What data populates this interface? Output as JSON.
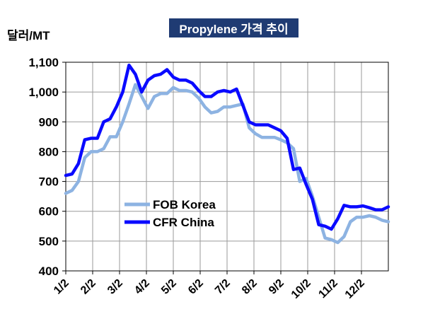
{
  "chart_data": {
    "type": "line",
    "title": "Propylene 가격 추이",
    "ylabel": "달러/MT",
    "xlabel": "",
    "ylim": [
      400,
      1100
    ],
    "yticks": [
      "400",
      "500",
      "600",
      "700",
      "800",
      "900",
      "1,000",
      "1,100"
    ],
    "xticks": [
      "1/2",
      "2/2",
      "3/2",
      "4/2",
      "5/2",
      "6/2",
      "7/2",
      "8/2",
      "9/2",
      "10/2",
      "11/2",
      "12/2"
    ],
    "x_range_weeks": [
      0,
      51
    ],
    "grid": true,
    "legend_placement": "center-left",
    "series": [
      {
        "name": "FOB Korea",
        "color": "#8db3e2",
        "x": [
          0,
          1,
          2,
          3,
          4,
          5,
          6,
          7,
          8,
          9,
          10,
          11,
          12,
          13,
          14,
          15,
          16,
          17,
          18,
          19,
          20,
          21,
          22,
          23,
          24,
          25,
          26,
          27,
          28,
          29,
          30,
          31,
          32,
          33,
          34,
          35,
          36,
          37,
          38,
          39,
          40,
          41,
          42,
          43,
          44,
          45,
          46,
          47,
          48,
          49,
          50,
          51
        ],
        "values": [
          660,
          670,
          700,
          780,
          800,
          800,
          810,
          850,
          850,
          900,
          960,
          1025,
          985,
          945,
          985,
          995,
          995,
          1015,
          1005,
          1005,
          1000,
          980,
          950,
          930,
          935,
          950,
          950,
          955,
          960,
          880,
          860,
          848,
          848,
          848,
          840,
          830,
          810,
          700,
          710,
          650,
          580,
          510,
          505,
          495,
          515,
          565,
          580,
          580,
          585,
          580,
          570,
          565
        ]
      },
      {
        "name": "CFR China",
        "color": "#0a0aff",
        "x": [
          0,
          1,
          2,
          3,
          4,
          5,
          6,
          7,
          8,
          9,
          10,
          11,
          12,
          13,
          14,
          15,
          16,
          17,
          18,
          19,
          20,
          21,
          22,
          23,
          24,
          25,
          26,
          27,
          28,
          29,
          30,
          31,
          32,
          33,
          34,
          35,
          36,
          37,
          38,
          39,
          40,
          41,
          42,
          43,
          44,
          45,
          46,
          47,
          48,
          49,
          50,
          51
        ],
        "values": [
          720,
          725,
          760,
          840,
          845,
          845,
          900,
          910,
          950,
          1000,
          1090,
          1060,
          1000,
          1040,
          1055,
          1060,
          1075,
          1050,
          1040,
          1040,
          1030,
          1005,
          985,
          985,
          1000,
          1005,
          1000,
          1010,
          955,
          900,
          890,
          890,
          890,
          880,
          870,
          845,
          740,
          745,
          690,
          640,
          555,
          550,
          540,
          575,
          620,
          615,
          615,
          618,
          612,
          605,
          605,
          615
        ]
      }
    ]
  }
}
